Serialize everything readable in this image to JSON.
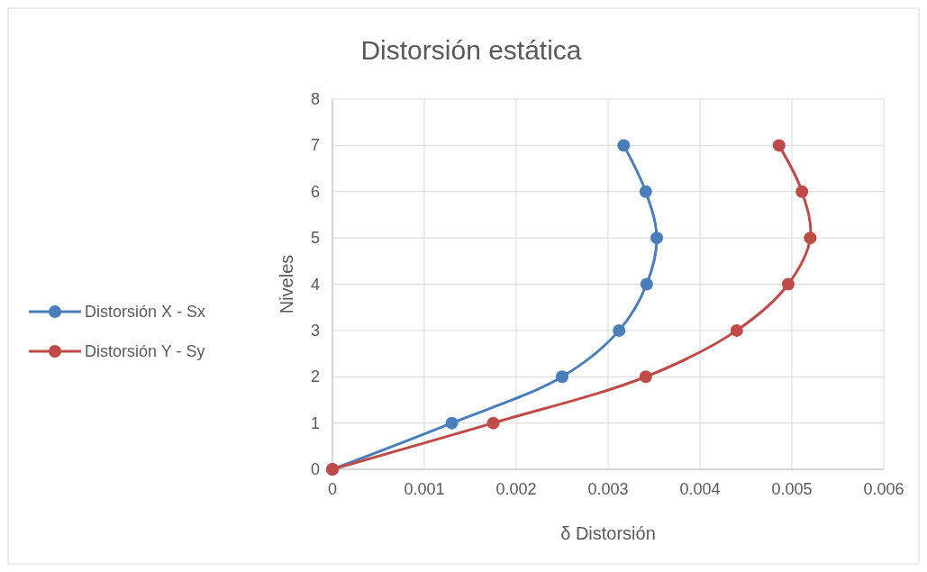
{
  "chart_data": {
    "type": "line",
    "title": "Distorsión estática",
    "xlabel": "δ Distorsión",
    "ylabel": "Niveles",
    "series": [
      {
        "name": "Distorsión X - Sx",
        "color": "#4a7ebb",
        "x": [
          0,
          0.0013,
          0.0025,
          0.00312,
          0.00342,
          0.00353,
          0.00341,
          0.00317
        ],
        "values": [
          0,
          1,
          2,
          3,
          4,
          5,
          6,
          7
        ]
      },
      {
        "name": "Distorsión Y - Sy",
        "color": "#be4b48",
        "x": [
          0,
          0.00175,
          0.00341,
          0.0044,
          0.00496,
          0.0052,
          0.00511,
          0.00486
        ],
        "values": [
          0,
          1,
          2,
          3,
          4,
          5,
          6,
          7
        ]
      }
    ],
    "xlim": [
      0,
      0.006
    ],
    "xticks": [
      0,
      0.001,
      0.002,
      0.003,
      0.004,
      0.005,
      0.006
    ],
    "ylim": [
      0,
      8
    ],
    "yticks": [
      0,
      1,
      2,
      3,
      4,
      5,
      6,
      7,
      8
    ],
    "grid": true,
    "legend": "left",
    "marker": "circle",
    "line_style": "solid"
  }
}
